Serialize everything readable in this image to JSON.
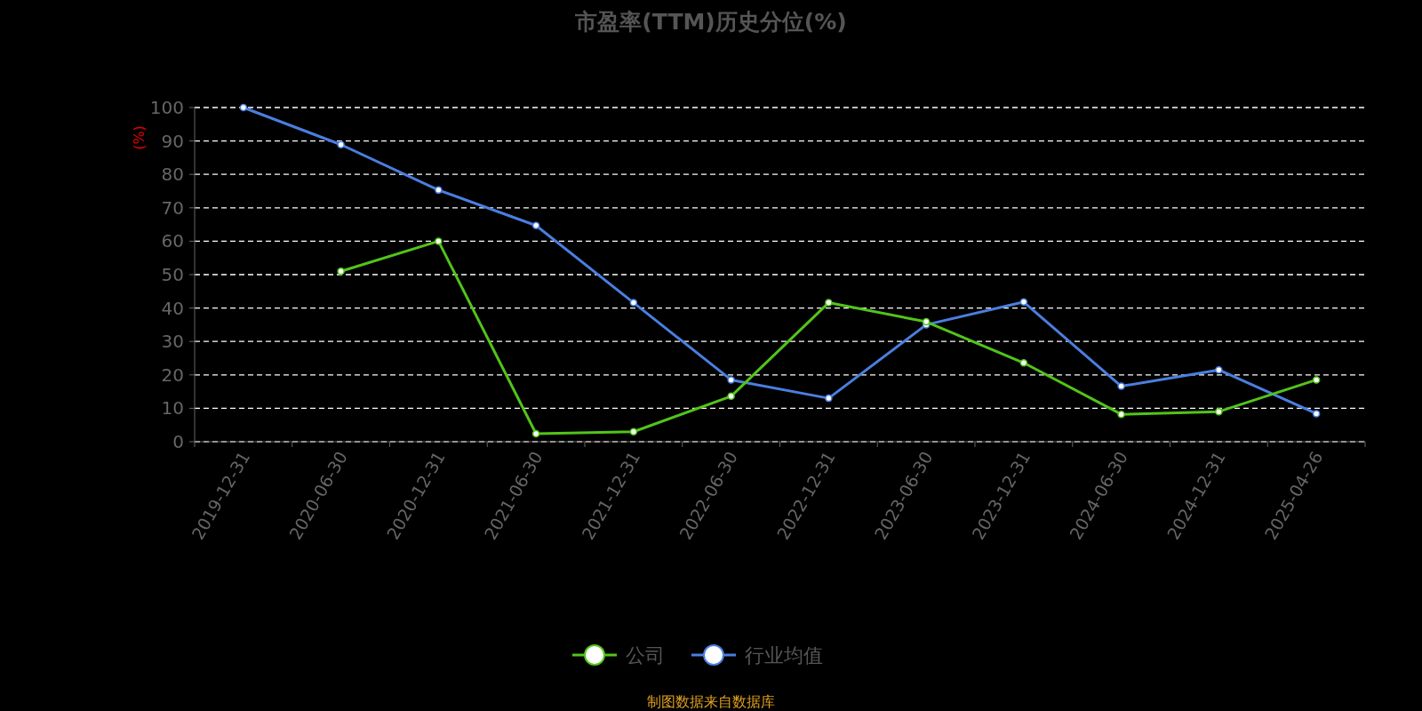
{
  "chart_data": {
    "type": "line",
    "title": "市盈率(TTM)历史分位(%)",
    "ylabel": "(%)",
    "categories": [
      "2019-12-31",
      "2020-06-30",
      "2020-12-31",
      "2021-06-30",
      "2021-12-31",
      "2022-06-30",
      "2022-12-31",
      "2023-06-30",
      "2023-12-31",
      "2024-06-30",
      "2024-12-31",
      "2025-04-26"
    ],
    "series": [
      {
        "name": "公司",
        "color": "#52c41a",
        "values": [
          null,
          51,
          60,
          2.4,
          3,
          13.6,
          41.6,
          35.9,
          23.6,
          8.2,
          9,
          18.5
        ]
      },
      {
        "name": "行业均值",
        "color": "#4a7fe0",
        "values": [
          100,
          88.9,
          75.3,
          64.7,
          41.6,
          18.5,
          13,
          35,
          41.8,
          16.6,
          21.5,
          8.4
        ]
      }
    ],
    "ylim": [
      0,
      100
    ],
    "yticks": [
      0,
      10,
      20,
      30,
      40,
      50,
      60,
      70,
      80,
      90,
      100
    ],
    "grid": "y",
    "legend": "bottom",
    "marker": "circle",
    "annotations": [
      "制图数据来自数据库"
    ]
  }
}
